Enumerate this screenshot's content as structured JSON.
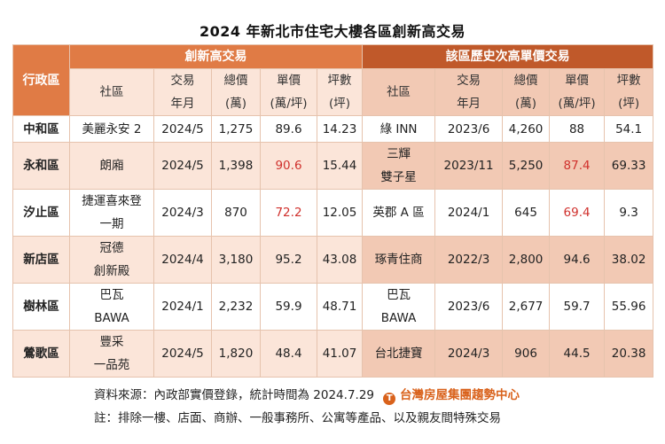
{
  "title": "2024 年新北市住宅大樓各區創新高交易",
  "table": {
    "district_header": "行政區",
    "group_new_high": "創新高交易",
    "group_prev_high": "該區歷史次高單價交易",
    "columns": [
      {
        "line1": "社區",
        "line2": ""
      },
      {
        "line1": "交易",
        "line2": "年月"
      },
      {
        "line1": "總價",
        "line2": "(萬)"
      },
      {
        "line1": "單價",
        "line2": "(萬/坪)"
      },
      {
        "line1": "坪數",
        "line2": "(坪)"
      }
    ],
    "rows": [
      {
        "district": "中和區",
        "new": {
          "community": [
            "美麗永安 2"
          ],
          "date": "2024/5",
          "total": "1,275",
          "unit": "89.6",
          "unit_red": false,
          "area": "14.23"
        },
        "prev": {
          "community": [
            "綠 INN"
          ],
          "date": "2023/6",
          "total": "4,260",
          "unit": "88",
          "unit_red": false,
          "area": "54.1"
        }
      },
      {
        "district": "永和區",
        "new": {
          "community": [
            "朗廂"
          ],
          "date": "2024/5",
          "total": "1,398",
          "unit": "90.6",
          "unit_red": true,
          "area": "15.44"
        },
        "prev": {
          "community": [
            "三輝",
            "雙子星"
          ],
          "date": "2023/11",
          "total": "5,250",
          "unit": "87.4",
          "unit_red": true,
          "area": "69.33"
        }
      },
      {
        "district": "汐止區",
        "new": {
          "community": [
            "捷運喜來登",
            "一期"
          ],
          "date": "2024/3",
          "total": "870",
          "unit": "72.2",
          "unit_red": true,
          "area": "12.05"
        },
        "prev": {
          "community": [
            "英郡 A 區"
          ],
          "date": "2024/1",
          "total": "645",
          "unit": "69.4",
          "unit_red": true,
          "area": "9.3"
        }
      },
      {
        "district": "新店區",
        "new": {
          "community": [
            "冠德",
            "創新殿"
          ],
          "date": "2024/4",
          "total": "3,180",
          "unit": "95.2",
          "unit_red": false,
          "area": "43.08"
        },
        "prev": {
          "community": [
            "琢青住商"
          ],
          "date": "2022/3",
          "total": "2,800",
          "unit": "94.6",
          "unit_red": false,
          "area": "38.02"
        }
      },
      {
        "district": "樹林區",
        "new": {
          "community": [
            "巴瓦",
            "BAWA"
          ],
          "date": "2024/1",
          "total": "2,232",
          "unit": "59.9",
          "unit_red": false,
          "area": "48.71"
        },
        "prev": {
          "community": [
            "巴瓦",
            "BAWA"
          ],
          "date": "2023/6",
          "total": "2,677",
          "unit": "59.7",
          "unit_red": false,
          "area": "55.96"
        }
      },
      {
        "district": "鶯歌區",
        "new": {
          "community": [
            "豐采",
            "一品苑"
          ],
          "date": "2024/5",
          "total": "1,820",
          "unit": "48.4",
          "unit_red": false,
          "area": "41.07"
        },
        "prev": {
          "community": [
            "台北捷寶"
          ],
          "date": "2024/3",
          "total": "906",
          "unit": "44.5",
          "unit_red": false,
          "area": "20.38"
        }
      }
    ]
  },
  "footer": {
    "source": "資料來源：內政部實價登錄，統計時間為 2024.7.29",
    "brand": "台灣房屋集團趨勢中心",
    "brand_logo": "T",
    "note": "註：排除一樓、店面、商辦、一般事務所、公寓等產品、以及親友間特殊交易"
  },
  "colors": {
    "header_orange": "#e07b45",
    "header_dark_orange": "#c0592a",
    "light_peach": "#fbe5d9",
    "salmon": "#f2c9b4",
    "highlight_red": "#d0312d",
    "brand": "#d9621c"
  }
}
